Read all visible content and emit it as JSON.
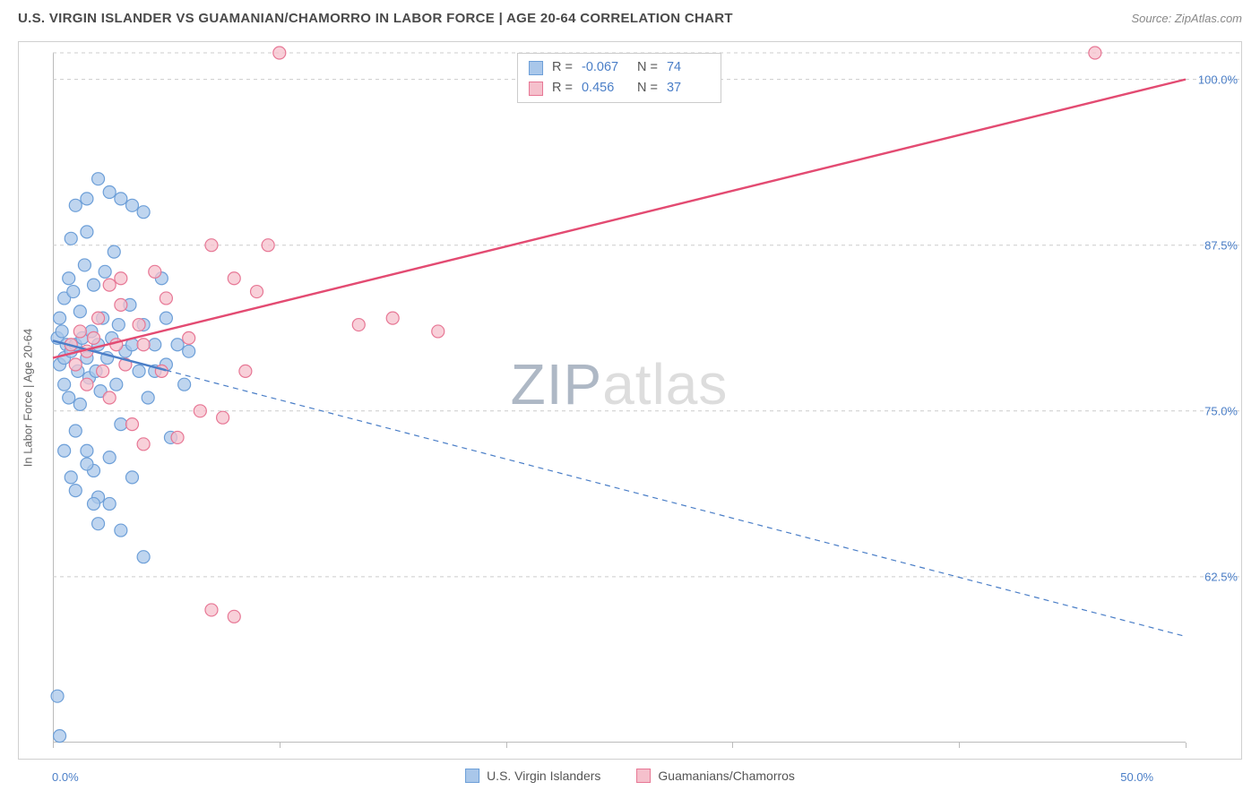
{
  "title": "U.S. VIRGIN ISLANDER VS GUAMANIAN/CHAMORRO IN LABOR FORCE | AGE 20-64 CORRELATION CHART",
  "source": "Source: ZipAtlas.com",
  "ylabel": "In Labor Force | Age 20-64",
  "watermark_zip": "ZIP",
  "watermark_atlas": "atlas",
  "chart": {
    "type": "scatter",
    "xlim": [
      0.0,
      50.0
    ],
    "ylim": [
      50.0,
      102.0
    ],
    "xticks": [
      {
        "pos": 0.0,
        "label": "0.0%"
      },
      {
        "pos": 10.0,
        "label": ""
      },
      {
        "pos": 20.0,
        "label": ""
      },
      {
        "pos": 30.0,
        "label": ""
      },
      {
        "pos": 40.0,
        "label": ""
      },
      {
        "pos": 50.0,
        "label": "50.0%"
      }
    ],
    "yticks": [
      {
        "pos": 62.5,
        "label": "62.5%"
      },
      {
        "pos": 75.0,
        "label": "75.0%"
      },
      {
        "pos": 87.5,
        "label": "87.5%"
      },
      {
        "pos": 100.0,
        "label": "100.0%"
      },
      {
        "pos": 102.0,
        "label": ""
      }
    ],
    "background_color": "#ffffff",
    "grid_color": "#cccccc",
    "series": [
      {
        "name": "U.S. Virgin Islanders",
        "color_fill": "#a9c7ea",
        "color_stroke": "#6d9fd8",
        "marker_radius": 7,
        "marker_opacity": 0.75,
        "stats": {
          "R": "-0.067",
          "N": "74"
        },
        "trend": {
          "x1": 0.0,
          "y1": 80.3,
          "x2": 50.0,
          "y2": 58.0,
          "solid_until_x": 5.0,
          "color": "#4a7ec7",
          "width_solid": 2.4,
          "width_dash": 1.2,
          "dash": "6,5"
        },
        "points": [
          [
            0.2,
            80.5
          ],
          [
            0.3,
            82.0
          ],
          [
            0.3,
            78.5
          ],
          [
            0.4,
            81.0
          ],
          [
            0.5,
            79.0
          ],
          [
            0.5,
            83.5
          ],
          [
            0.5,
            77.0
          ],
          [
            0.6,
            80.0
          ],
          [
            0.7,
            85.0
          ],
          [
            0.7,
            76.0
          ],
          [
            0.8,
            79.5
          ],
          [
            0.8,
            88.0
          ],
          [
            0.9,
            84.0
          ],
          [
            1.0,
            80.0
          ],
          [
            1.0,
            90.5
          ],
          [
            1.0,
            73.5
          ],
          [
            1.1,
            78.0
          ],
          [
            1.2,
            82.5
          ],
          [
            1.2,
            75.5
          ],
          [
            1.3,
            80.5
          ],
          [
            1.4,
            86.0
          ],
          [
            1.5,
            79.0
          ],
          [
            1.5,
            72.0
          ],
          [
            1.5,
            88.5
          ],
          [
            1.6,
            77.5
          ],
          [
            1.7,
            81.0
          ],
          [
            1.8,
            84.5
          ],
          [
            1.8,
            70.5
          ],
          [
            1.9,
            78.0
          ],
          [
            2.0,
            80.0
          ],
          [
            2.0,
            92.5
          ],
          [
            2.0,
            68.5
          ],
          [
            2.1,
            76.5
          ],
          [
            2.2,
            82.0
          ],
          [
            2.3,
            85.5
          ],
          [
            2.4,
            79.0
          ],
          [
            2.5,
            71.5
          ],
          [
            2.6,
            80.5
          ],
          [
            2.7,
            87.0
          ],
          [
            2.8,
            77.0
          ],
          [
            2.9,
            81.5
          ],
          [
            3.0,
            74.0
          ],
          [
            3.0,
            66.0
          ],
          [
            3.2,
            79.5
          ],
          [
            3.4,
            83.0
          ],
          [
            3.5,
            90.5
          ],
          [
            3.5,
            70.0
          ],
          [
            3.8,
            78.0
          ],
          [
            4.0,
            81.5
          ],
          [
            4.0,
            64.0
          ],
          [
            4.2,
            76.0
          ],
          [
            4.5,
            80.0
          ],
          [
            4.8,
            85.0
          ],
          [
            5.0,
            78.5
          ],
          [
            5.2,
            73.0
          ],
          [
            5.5,
            80.0
          ],
          [
            5.8,
            77.0
          ],
          [
            6.0,
            79.5
          ],
          [
            0.2,
            53.5
          ],
          [
            0.3,
            50.5
          ],
          [
            1.5,
            91.0
          ],
          [
            2.5,
            91.5
          ],
          [
            3.0,
            91.0
          ],
          [
            4.0,
            90.0
          ],
          [
            2.0,
            66.5
          ],
          [
            1.0,
            69.0
          ],
          [
            1.5,
            71.0
          ],
          [
            2.5,
            68.0
          ],
          [
            0.5,
            72.0
          ],
          [
            1.8,
            68.0
          ],
          [
            0.8,
            70.0
          ],
          [
            3.5,
            80.0
          ],
          [
            4.5,
            78.0
          ],
          [
            5.0,
            82.0
          ]
        ]
      },
      {
        "name": "Guamanians/Chamorros",
        "color_fill": "#f5c0cc",
        "color_stroke": "#e77795",
        "marker_radius": 7,
        "marker_opacity": 0.75,
        "stats": {
          "R": "0.456",
          "N": "37"
        },
        "trend": {
          "x1": 0.0,
          "y1": 79.0,
          "x2": 50.0,
          "y2": 100.0,
          "solid_until_x": 50.0,
          "color": "#e34b72",
          "width_solid": 2.4,
          "width_dash": 1.2,
          "dash": "6,5"
        },
        "points": [
          [
            0.8,
            80.0
          ],
          [
            1.0,
            78.5
          ],
          [
            1.2,
            81.0
          ],
          [
            1.5,
            79.5
          ],
          [
            1.5,
            77.0
          ],
          [
            1.8,
            80.5
          ],
          [
            2.0,
            82.0
          ],
          [
            2.2,
            78.0
          ],
          [
            2.5,
            84.5
          ],
          [
            2.5,
            76.0
          ],
          [
            2.8,
            80.0
          ],
          [
            3.0,
            83.0
          ],
          [
            3.0,
            85.0
          ],
          [
            3.2,
            78.5
          ],
          [
            3.5,
            74.0
          ],
          [
            3.8,
            81.5
          ],
          [
            4.0,
            80.0
          ],
          [
            4.0,
            72.5
          ],
          [
            4.5,
            85.5
          ],
          [
            4.8,
            78.0
          ],
          [
            5.0,
            83.5
          ],
          [
            5.5,
            73.0
          ],
          [
            6.0,
            80.5
          ],
          [
            6.5,
            75.0
          ],
          [
            7.0,
            87.5
          ],
          [
            7.0,
            60.0
          ],
          [
            7.5,
            74.5
          ],
          [
            8.0,
            85.0
          ],
          [
            8.0,
            59.5
          ],
          [
            8.5,
            78.0
          ],
          [
            9.0,
            84.0
          ],
          [
            9.5,
            87.5
          ],
          [
            10.0,
            102.0
          ],
          [
            13.5,
            81.5
          ],
          [
            15.0,
            82.0
          ],
          [
            17.0,
            81.0
          ],
          [
            46.0,
            102.0
          ]
        ]
      }
    ]
  },
  "legend_bottom": [
    {
      "label": "U.S. Virgin Islanders",
      "fill": "#a9c7ea",
      "stroke": "#6d9fd8"
    },
    {
      "label": "Guamanians/Chamorros",
      "fill": "#f5c0cc",
      "stroke": "#e77795"
    }
  ]
}
